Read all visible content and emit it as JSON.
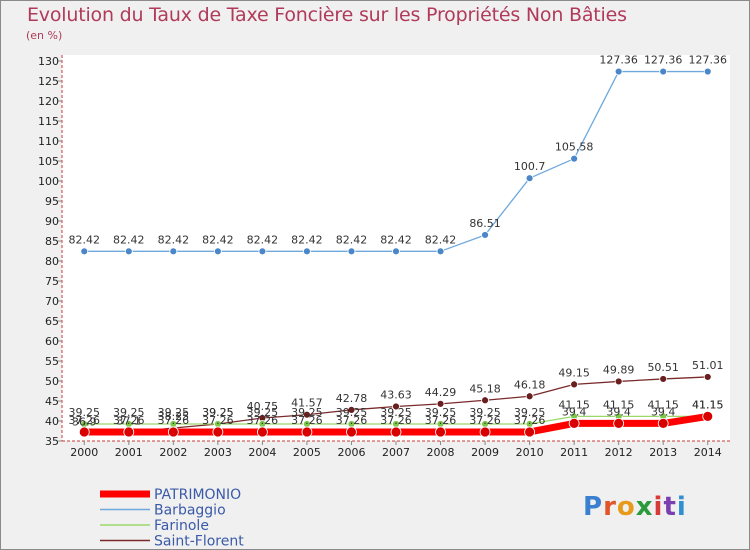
{
  "title": "Evolution du Taux de Taxe Foncière sur les Propriétés Non Bâties",
  "subtitle": "(en %)",
  "logo": {
    "text": "Proxiti",
    "colors": [
      "#3a7fd0",
      "#e0562a",
      "#e89a1a",
      "#2a9a3a",
      "#d83a3a",
      "#7a3fb0",
      "#2f8fd0"
    ]
  },
  "chart_data": {
    "type": "line",
    "title": "Evolution du Taux de Taxe Foncière sur les Propriétés Non Bâties",
    "ylabel": "(en %)",
    "xlabel": "",
    "ylim": [
      35,
      130
    ],
    "yticks": [
      35,
      40,
      45,
      50,
      55,
      60,
      65,
      70,
      75,
      80,
      85,
      90,
      95,
      100,
      105,
      110,
      115,
      120,
      125,
      130
    ],
    "grid": false,
    "legend_position": "bottom-left",
    "x": [
      "2000",
      "2001",
      "2002",
      "2003",
      "2004",
      "2005",
      "2006",
      "2007",
      "2008",
      "2009",
      "2010",
      "2011",
      "2012",
      "2013",
      "2014"
    ],
    "series": [
      {
        "name": "Barbaggio",
        "color": "#6fa8dc",
        "marker": "#4a86c8",
        "width": 1.3,
        "values": [
          82.42,
          82.42,
          82.42,
          82.42,
          82.42,
          82.42,
          82.42,
          82.42,
          82.42,
          86.51,
          100.7,
          105.58,
          127.36,
          127.36,
          127.36
        ],
        "labels": [
          "82.42",
          "82.42",
          "82.42",
          "82.42",
          "82.42",
          "82.42",
          "82.42",
          "82.42",
          "82.42",
          "86.51",
          "100.7",
          "105.58",
          "127.36",
          "127.36",
          "127.36"
        ]
      },
      {
        "name": "Saint-Florent",
        "color": "#7a2a2a",
        "marker": "#6a1f1f",
        "width": 1.3,
        "values": [
          36.9,
          37.1,
          38.25,
          39.25,
          40.75,
          41.57,
          42.78,
          43.63,
          44.29,
          45.18,
          46.18,
          49.15,
          49.89,
          50.51,
          51.01
        ],
        "labels": [
          "36.9",
          "37.1",
          "38.25",
          "39.25",
          "40.75",
          "41.57",
          "42.78",
          "43.63",
          "44.29",
          "45.18",
          "46.18",
          "49.15",
          "49.89",
          "50.51",
          "51.01"
        ]
      },
      {
        "name": "Farinole",
        "color": "#9ad86a",
        "marker": "#7cc84a",
        "width": 1.3,
        "values": [
          39.25,
          39.25,
          39.25,
          39.25,
          39.25,
          39.25,
          39.25,
          39.25,
          39.25,
          39.25,
          39.25,
          41.15,
          41.15,
          41.15,
          41.15
        ],
        "labels": [
          "39.25",
          "39.25",
          "39.25",
          "39.25",
          "39.25",
          "39.25",
          "39.25",
          "39.25",
          "39.25",
          "39.25",
          "39.25",
          "41.15",
          "41.15",
          "41.15",
          "41.15"
        ]
      },
      {
        "name": "PATRIMONIO",
        "color": "#ff0000",
        "marker": "#d80000",
        "width": 7,
        "values": [
          37.26,
          37.26,
          37.26,
          37.26,
          37.26,
          37.26,
          37.26,
          37.26,
          37.26,
          37.26,
          37.26,
          39.4,
          39.4,
          39.4,
          41.15
        ],
        "labels": [
          "37.26",
          "37.26",
          "37.26",
          "37.26",
          "37.26",
          "37.26",
          "37.26",
          "37.26",
          "37.26",
          "37.26",
          "37.26",
          "39.4",
          "39.4",
          "39.4",
          "41.15"
        ]
      }
    ],
    "legend": [
      "PATRIMONIO",
      "Barbaggio",
      "Farinole",
      "Saint-Florent"
    ]
  }
}
